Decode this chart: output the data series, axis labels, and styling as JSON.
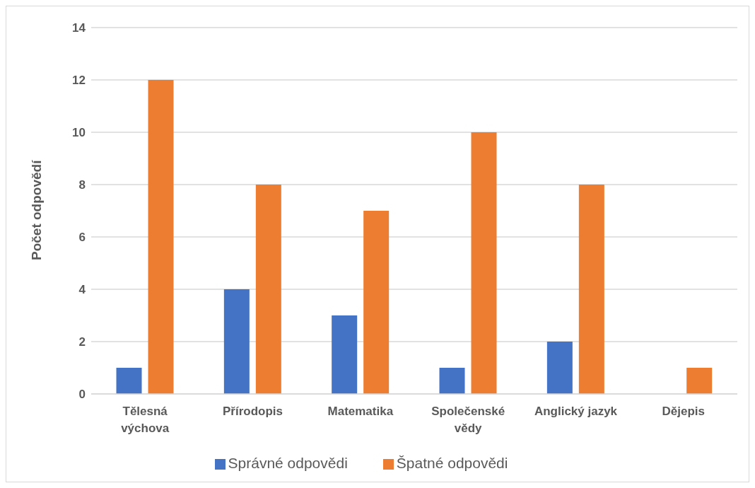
{
  "chart_data": {
    "type": "bar",
    "ylabel": "Počet odpovědí",
    "categories": [
      "Tělesná výchova",
      "Přírodopis",
      "Matematika",
      "Společenské vědy",
      "Anglický jazyk",
      "Dějepis"
    ],
    "series": [
      {
        "name": "Správné odpovědi",
        "color": "#4472c4",
        "values": [
          1,
          4,
          3,
          1,
          2,
          0
        ]
      },
      {
        "name": "Špatné odpovědi",
        "color": "#ed7d31",
        "values": [
          12,
          8,
          7,
          10,
          8,
          1
        ]
      }
    ],
    "ylim": [
      0,
      14
    ],
    "yticks": [
      0,
      2,
      4,
      6,
      8,
      10,
      12,
      14
    ],
    "grid": "y",
    "legend": "bottom"
  }
}
